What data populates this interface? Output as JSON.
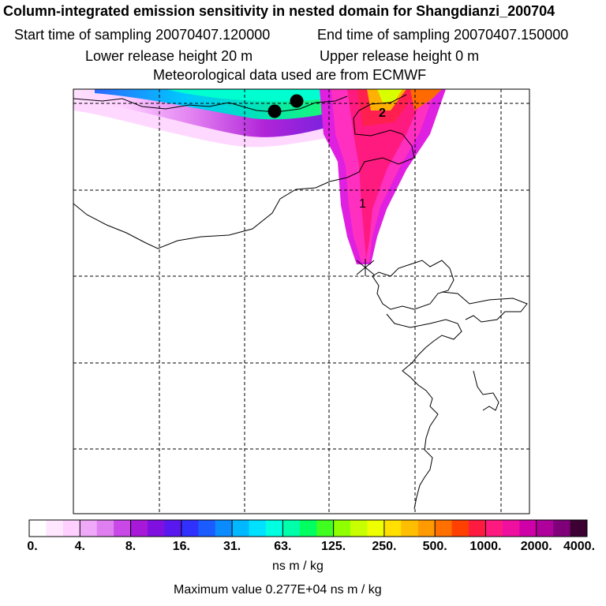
{
  "header": {
    "title": "Column-integrated emission sensitivity in nested domain for Shangdianzi_200704",
    "start_time": "Start time of sampling 20070407.120000",
    "end_time": "End time of sampling 20070407.150000",
    "lower_height": "Lower release height   20 m",
    "upper_height": "Upper release height    0 m",
    "met_data": "Meteorological data used are from ECMWF"
  },
  "chart_data": {
    "type": "heatmap",
    "title": "Column-integrated emission sensitivity",
    "color_scale": {
      "tick_labels": [
        "0.",
        "4.",
        "8.",
        "16.",
        "31.",
        "63.",
        "125.",
        "250.",
        "500.",
        "1000.",
        "2000.",
        "4000."
      ],
      "units": "ns m / kg",
      "colors": [
        "#ffffff",
        "#ffd6ff",
        "#e58cf0",
        "#b31ad4",
        "#4d1ae6",
        "#1a5cff",
        "#00d2ff",
        "#00ff7f",
        "#c8ff00",
        "#ffbf00",
        "#ff1a66",
        "#b3008c",
        "#3d0033"
      ]
    },
    "max_value": "Maximum value  0.277E+04 ns m / kg",
    "plume_labels": [
      "1",
      "2"
    ],
    "markers": [
      "receptor",
      "past-position",
      "past-position"
    ],
    "colors": {
      "frame": "#000000",
      "grid": "#000000"
    }
  }
}
